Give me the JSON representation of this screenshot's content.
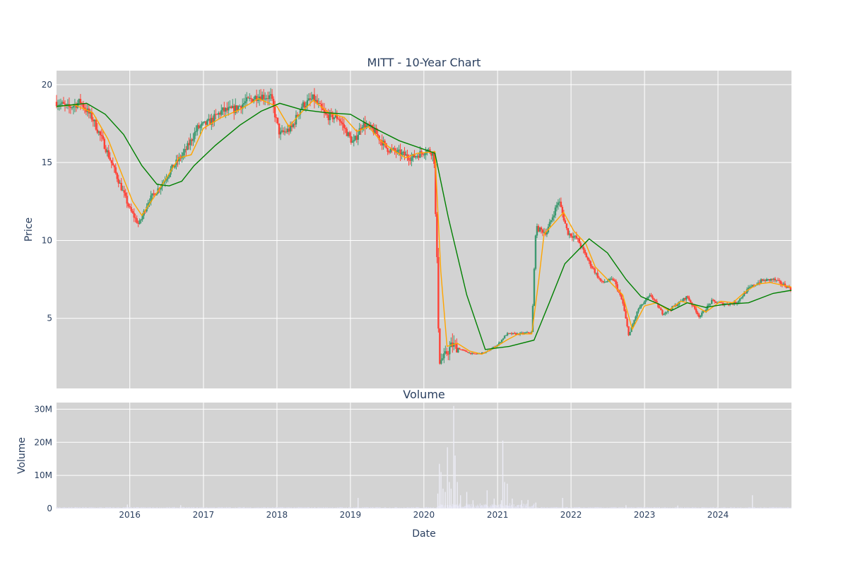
{
  "chart_data": [
    {
      "type": "candlestick",
      "title": "MITT - 10-Year Chart",
      "ylabel": "Price",
      "ylim": [
        0.5,
        20.9
      ],
      "xlim": [
        "2015-01-02",
        "2024-12-31"
      ],
      "grid": true,
      "y_ticks": [
        5,
        10,
        15,
        20
      ],
      "colors": {
        "plot_bg": "#d3d3d3",
        "increasing": "#3d9970",
        "decreasing": "#ff4136",
        "ma_short": "#ffa500",
        "ma_long": "#008000"
      },
      "overlays": [
        {
          "kind": "moving-average-short",
          "color": "#ffa500"
        },
        {
          "kind": "moving-average-long",
          "color": "#008000"
        }
      ],
      "close_series": [
        [
          "2015-01-02",
          18.9
        ],
        [
          "2015-03-01",
          18.5
        ],
        [
          "2015-05-01",
          18.9
        ],
        [
          "2015-07-01",
          17.8
        ],
        [
          "2015-09-01",
          16.0
        ],
        [
          "2015-11-01",
          14.0
        ],
        [
          "2016-01-01",
          12.0
        ],
        [
          "2016-02-15",
          11.0
        ],
        [
          "2016-04-01",
          12.5
        ],
        [
          "2016-06-01",
          13.5
        ],
        [
          "2016-08-01",
          14.7
        ],
        [
          "2016-10-01",
          15.7
        ],
        [
          "2016-12-01",
          17.2
        ],
        [
          "2017-02-01",
          17.6
        ],
        [
          "2017-04-01",
          18.3
        ],
        [
          "2017-06-01",
          18.4
        ],
        [
          "2017-08-01",
          18.9
        ],
        [
          "2017-10-01",
          19.3
        ],
        [
          "2017-12-01",
          19.2
        ],
        [
          "2018-01-15",
          16.8
        ],
        [
          "2018-03-15",
          17.2
        ],
        [
          "2018-05-01",
          18.6
        ],
        [
          "2018-07-01",
          19.1
        ],
        [
          "2018-09-01",
          18.0
        ],
        [
          "2018-11-01",
          17.9
        ],
        [
          "2019-01-15",
          16.2
        ],
        [
          "2019-03-01",
          17.5
        ],
        [
          "2019-05-01",
          17.0
        ],
        [
          "2019-07-01",
          15.9
        ],
        [
          "2019-09-01",
          15.6
        ],
        [
          "2019-11-01",
          15.3
        ],
        [
          "2020-01-15",
          15.8
        ],
        [
          "2020-02-20",
          15.6
        ],
        [
          "2020-03-18",
          2.2
        ],
        [
          "2020-04-15",
          2.6
        ],
        [
          "2020-05-20",
          3.3
        ],
        [
          "2020-07-01",
          3.0
        ],
        [
          "2020-09-01",
          2.7
        ],
        [
          "2020-11-01",
          2.8
        ],
        [
          "2021-01-01",
          3.3
        ],
        [
          "2021-02-15",
          4.0
        ],
        [
          "2021-04-15",
          4.0
        ],
        [
          "2021-06-20",
          4.1
        ],
        [
          "2021-07-10",
          10.8
        ],
        [
          "2021-09-01",
          10.5
        ],
        [
          "2021-11-01",
          12.6
        ],
        [
          "2021-12-15",
          10.5
        ],
        [
          "2022-02-01",
          10.1
        ],
        [
          "2022-04-01",
          8.6
        ],
        [
          "2022-06-01",
          7.3
        ],
        [
          "2022-08-01",
          7.5
        ],
        [
          "2022-09-15",
          6.0
        ],
        [
          "2022-10-15",
          3.9
        ],
        [
          "2022-12-01",
          5.6
        ],
        [
          "2023-02-01",
          6.5
        ],
        [
          "2023-04-01",
          5.3
        ],
        [
          "2023-06-01",
          5.8
        ],
        [
          "2023-08-01",
          6.4
        ],
        [
          "2023-10-01",
          5.1
        ],
        [
          "2023-12-01",
          6.1
        ],
        [
          "2024-02-01",
          5.9
        ],
        [
          "2024-04-01",
          6.0
        ],
        [
          "2024-06-01",
          6.9
        ],
        [
          "2024-08-01",
          7.4
        ],
        [
          "2024-10-01",
          7.5
        ],
        [
          "2024-12-31",
          6.9
        ]
      ],
      "ma_short_series": [
        [
          "2015-01-02",
          18.6
        ],
        [
          "2015-04-01",
          18.7
        ],
        [
          "2015-07-01",
          18.2
        ],
        [
          "2015-09-15",
          16.5
        ],
        [
          "2015-11-15",
          14.5
        ],
        [
          "2016-01-15",
          12.5
        ],
        [
          "2016-03-01",
          11.6
        ],
        [
          "2016-05-01",
          12.8
        ],
        [
          "2016-07-01",
          14.0
        ],
        [
          "2016-09-01",
          15.3
        ],
        [
          "2016-11-01",
          15.5
        ],
        [
          "2017-01-01",
          17.2
        ],
        [
          "2017-04-01",
          17.9
        ],
        [
          "2017-07-01",
          18.4
        ],
        [
          "2017-10-01",
          19.1
        ],
        [
          "2018-01-01",
          18.6
        ],
        [
          "2018-03-01",
          17.3
        ],
        [
          "2018-05-01",
          18.2
        ],
        [
          "2018-07-01",
          19.0
        ],
        [
          "2018-09-15",
          18.2
        ],
        [
          "2018-12-01",
          17.9
        ],
        [
          "2019-02-01",
          17.0
        ],
        [
          "2019-04-01",
          17.3
        ],
        [
          "2019-06-01",
          16.4
        ],
        [
          "2019-08-01",
          15.8
        ],
        [
          "2019-10-01",
          15.3
        ],
        [
          "2019-12-01",
          15.6
        ],
        [
          "2020-02-25",
          15.7
        ],
        [
          "2020-03-25",
          8.0
        ],
        [
          "2020-04-25",
          3.2
        ],
        [
          "2020-06-15",
          3.4
        ],
        [
          "2020-08-15",
          2.9
        ],
        [
          "2020-10-15",
          2.7
        ],
        [
          "2020-12-15",
          3.1
        ],
        [
          "2021-02-15",
          3.6
        ],
        [
          "2021-04-15",
          4.0
        ],
        [
          "2021-06-20",
          4.0
        ],
        [
          "2021-07-25",
          7.5
        ],
        [
          "2021-08-20",
          10.4
        ],
        [
          "2021-10-15",
          11.2
        ],
        [
          "2021-11-25",
          11.8
        ],
        [
          "2022-01-15",
          10.6
        ],
        [
          "2022-03-15",
          9.8
        ],
        [
          "2022-05-01",
          8.3
        ],
        [
          "2022-07-01",
          7.5
        ],
        [
          "2022-09-15",
          6.5
        ],
        [
          "2022-11-01",
          4.3
        ],
        [
          "2023-01-01",
          5.8
        ],
        [
          "2023-03-01",
          6.0
        ],
        [
          "2023-05-01",
          5.5
        ],
        [
          "2023-07-01",
          6.1
        ],
        [
          "2023-09-01",
          5.9
        ],
        [
          "2023-11-01",
          5.4
        ],
        [
          "2024-01-15",
          6.1
        ],
        [
          "2024-03-15",
          6.0
        ],
        [
          "2024-05-15",
          6.7
        ],
        [
          "2024-07-15",
          7.2
        ],
        [
          "2024-09-15",
          7.3
        ],
        [
          "2024-12-31",
          7.0
        ]
      ],
      "ma_long_series": [
        [
          "2015-01-02",
          18.6
        ],
        [
          "2015-06-01",
          18.8
        ],
        [
          "2015-09-01",
          18.1
        ],
        [
          "2015-12-01",
          16.8
        ],
        [
          "2016-03-01",
          14.8
        ],
        [
          "2016-05-15",
          13.6
        ],
        [
          "2016-07-15",
          13.5
        ],
        [
          "2016-09-15",
          13.8
        ],
        [
          "2016-11-15",
          14.8
        ],
        [
          "2017-03-01",
          16.1
        ],
        [
          "2017-07-01",
          17.4
        ],
        [
          "2017-10-15",
          18.3
        ],
        [
          "2018-01-15",
          18.8
        ],
        [
          "2018-05-01",
          18.4
        ],
        [
          "2018-09-01",
          18.2
        ],
        [
          "2019-01-01",
          18.1
        ],
        [
          "2019-05-01",
          17.2
        ],
        [
          "2019-09-01",
          16.4
        ],
        [
          "2020-02-25",
          15.6
        ],
        [
          "2020-05-01",
          11.5
        ],
        [
          "2020-08-01",
          6.5
        ],
        [
          "2020-11-01",
          3.0
        ],
        [
          "2021-03-01",
          3.2
        ],
        [
          "2021-07-01",
          3.6
        ],
        [
          "2021-09-15",
          6.0
        ],
        [
          "2021-12-01",
          8.5
        ],
        [
          "2022-04-01",
          10.1
        ],
        [
          "2022-07-01",
          9.2
        ],
        [
          "2022-10-01",
          7.5
        ],
        [
          "2022-12-15",
          6.4
        ],
        [
          "2023-03-15",
          5.9
        ],
        [
          "2023-05-15",
          5.5
        ],
        [
          "2023-08-01",
          6.0
        ],
        [
          "2023-11-01",
          5.7
        ],
        [
          "2024-02-01",
          5.9
        ],
        [
          "2024-06-01",
          6.0
        ],
        [
          "2024-10-01",
          6.6
        ],
        [
          "2024-12-31",
          6.8
        ]
      ]
    },
    {
      "type": "bar",
      "title": "Volume",
      "ylabel": "Volume",
      "xlabel": "Date",
      "ylim": [
        0,
        32000000
      ],
      "y_ticks": [
        0,
        10000000,
        20000000,
        30000000
      ],
      "y_tick_labels": [
        "0",
        "10M",
        "20M",
        "30M"
      ],
      "x_tick_labels": [
        "2016",
        "2017",
        "2018",
        "2019",
        "2020",
        "2021",
        "2022",
        "2023",
        "2024"
      ],
      "grid": true,
      "colors": {
        "plot_bg": "#d3d3d3",
        "bar": "#e3e3f1"
      },
      "baseline_volume": 300000,
      "spikes": [
        [
          "2015-12-20",
          1200000
        ],
        [
          "2016-09-10",
          1000000
        ],
        [
          "2019-02-08",
          3200000
        ],
        [
          "2020-03-10",
          4500000
        ],
        [
          "2020-03-18",
          13500000
        ],
        [
          "2020-03-26",
          11000000
        ],
        [
          "2020-04-05",
          6000000
        ],
        [
          "2020-04-16",
          5000000
        ],
        [
          "2020-04-27",
          18500000
        ],
        [
          "2020-05-06",
          8000000
        ],
        [
          "2020-05-15",
          6000000
        ],
        [
          "2020-05-28",
          31000000
        ],
        [
          "2020-06-04",
          16000000
        ],
        [
          "2020-06-15",
          8000000
        ],
        [
          "2020-07-01",
          4000000
        ],
        [
          "2020-08-01",
          5000000
        ],
        [
          "2020-09-01",
          2500000
        ],
        [
          "2020-11-10",
          5500000
        ],
        [
          "2020-12-15",
          3000000
        ],
        [
          "2021-01-20",
          2500000
        ],
        [
          "2021-01-27",
          20500000
        ],
        [
          "2021-02-05",
          8000000
        ],
        [
          "2021-02-18",
          7500000
        ],
        [
          "2021-03-15",
          3000000
        ],
        [
          "2021-05-01",
          2500000
        ],
        [
          "2021-06-01",
          2600000
        ],
        [
          "2021-07-10",
          1800000
        ],
        [
          "2021-11-20",
          3200000
        ],
        [
          "2022-10-01",
          1000000
        ],
        [
          "2023-06-15",
          900000
        ],
        [
          "2024-06-20",
          4000000
        ]
      ]
    }
  ]
}
